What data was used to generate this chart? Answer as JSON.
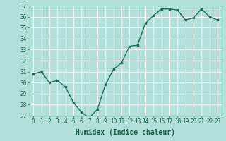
{
  "x": [
    0,
    1,
    2,
    3,
    4,
    5,
    6,
    7,
    8,
    9,
    10,
    11,
    12,
    13,
    14,
    15,
    16,
    17,
    18,
    19,
    20,
    21,
    22,
    23
  ],
  "y": [
    30.8,
    31.0,
    30.0,
    30.2,
    29.6,
    28.2,
    27.3,
    26.8,
    27.6,
    29.8,
    31.2,
    31.8,
    33.3,
    33.4,
    35.4,
    36.1,
    36.7,
    36.7,
    36.6,
    35.7,
    35.9,
    36.7,
    36.0,
    35.7
  ],
  "xlabel": "Humidex (Indice chaleur)",
  "ylim": [
    27,
    37
  ],
  "xlim": [
    -0.5,
    23.5
  ],
  "yticks": [
    27,
    28,
    29,
    30,
    31,
    32,
    33,
    34,
    35,
    36,
    37
  ],
  "xticks": [
    0,
    1,
    2,
    3,
    4,
    5,
    6,
    7,
    8,
    9,
    10,
    11,
    12,
    13,
    14,
    15,
    16,
    17,
    18,
    19,
    20,
    21,
    22,
    23
  ],
  "line_color": "#1a6b5a",
  "marker_color": "#1a6b5a",
  "bg_color": "#b2dfdb",
  "grid_color": "#ffffff",
  "font_color": "#1a5c4a",
  "tick_fontsize": 5.5,
  "xlabel_fontsize": 7.0,
  "linewidth": 1.0,
  "markersize": 2.0
}
